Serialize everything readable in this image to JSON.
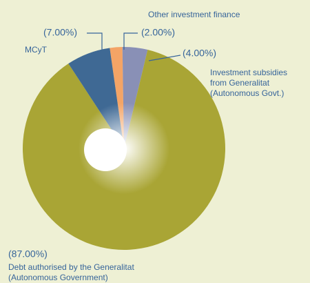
{
  "chart_data": {
    "type": "donut",
    "categories": [
      [
        "Other investment finance"
      ],
      [
        "Investment subsidies",
        "from Generalitat",
        "(Autonomous Govt.)"
      ],
      [
        "Debt authorised by the Generalitat",
        "(Autonomous Government)"
      ],
      [
        "MCyT"
      ]
    ],
    "values": [
      2,
      4,
      87,
      7
    ],
    "value_labels": [
      "(2.00%)",
      "(4.00%)",
      "(87.00%)",
      "(7.00%)"
    ],
    "colors": [
      "#f4a466",
      "#8990b6",
      "#a9a535",
      "#3f6994"
    ]
  }
}
